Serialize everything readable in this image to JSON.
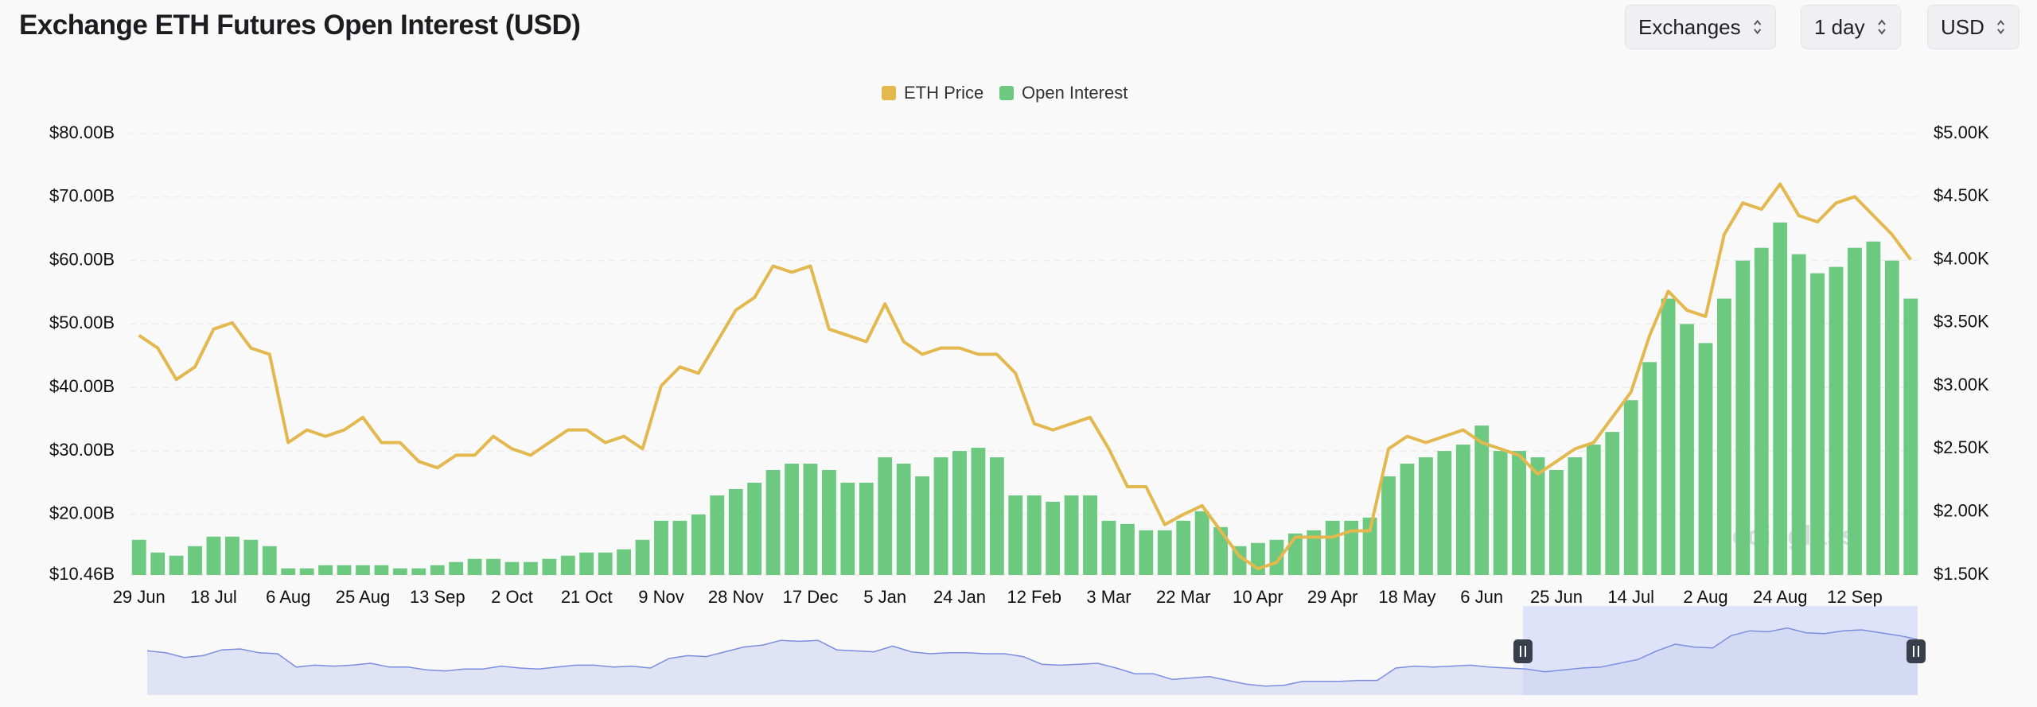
{
  "header": {
    "title": "Exchange ETH Futures Open Interest (USD)",
    "controls": [
      "Exchanges",
      "1 day",
      "USD"
    ]
  },
  "chart_data": {
    "type": "combo",
    "watermark": "coinglass",
    "categories": [
      "29 Jun",
      null,
      null,
      null,
      "18 Jul",
      null,
      null,
      null,
      "6 Aug",
      null,
      null,
      null,
      "25 Aug",
      null,
      null,
      null,
      "13 Sep",
      null,
      null,
      null,
      "2 Oct",
      null,
      null,
      null,
      "21 Oct",
      null,
      null,
      null,
      "9 Nov",
      null,
      null,
      null,
      "28 Nov",
      null,
      null,
      null,
      "17 Dec",
      null,
      null,
      null,
      "5 Jan",
      null,
      null,
      null,
      "24 Jan",
      null,
      null,
      null,
      "12 Feb",
      null,
      null,
      null,
      "3 Mar",
      null,
      null,
      null,
      "22 Mar",
      null,
      null,
      null,
      "10 Apr",
      null,
      null,
      null,
      "29 Apr",
      null,
      null,
      null,
      "18 May",
      null,
      null,
      null,
      "6 Jun",
      null,
      null,
      null,
      "25 Jun",
      null,
      null,
      null,
      "14 Jul",
      null,
      null,
      null,
      "2 Aug",
      null,
      null,
      null,
      "24 Aug",
      null,
      null,
      null,
      "12 Sep",
      null,
      null,
      null
    ],
    "series": [
      {
        "name": "ETH Price",
        "color": "#e2b84f",
        "type": "line",
        "axis": "y2",
        "values": [
          3.4,
          3.3,
          3.05,
          3.15,
          3.45,
          3.5,
          3.3,
          3.25,
          2.55,
          2.65,
          2.6,
          2.65,
          2.75,
          2.55,
          2.55,
          2.4,
          2.35,
          2.45,
          2.45,
          2.6,
          2.5,
          2.45,
          2.55,
          2.65,
          2.65,
          2.55,
          2.6,
          2.5,
          3.0,
          3.15,
          3.1,
          3.35,
          3.6,
          3.7,
          3.95,
          3.9,
          3.95,
          3.45,
          3.4,
          3.35,
          3.65,
          3.35,
          3.25,
          3.3,
          3.3,
          3.25,
          3.25,
          3.1,
          2.7,
          2.65,
          2.7,
          2.75,
          2.5,
          2.2,
          2.2,
          1.9,
          1.98,
          2.05,
          1.85,
          1.65,
          1.55,
          1.6,
          1.8,
          1.8,
          1.8,
          1.85,
          1.85,
          2.5,
          2.6,
          2.55,
          2.6,
          2.65,
          2.55,
          2.5,
          2.45,
          2.3,
          2.4,
          2.5,
          2.55,
          2.75,
          2.95,
          3.4,
          3.75,
          3.6,
          3.55,
          4.2,
          4.45,
          4.4,
          4.6,
          4.35,
          4.3,
          4.45,
          4.5,
          4.35,
          4.2,
          4.0
        ]
      },
      {
        "name": "Open Interest",
        "color": "#6cc97f",
        "type": "bar",
        "values": [
          16,
          14,
          13.5,
          15,
          16.5,
          16.5,
          16,
          15,
          11.5,
          11.5,
          12,
          12,
          12,
          12,
          11.5,
          11.5,
          12,
          12.5,
          13,
          13,
          12.5,
          12.5,
          13,
          13.5,
          14,
          14,
          14.5,
          16,
          19,
          19,
          20,
          23,
          24,
          25,
          27,
          28,
          28,
          27,
          25,
          25,
          29,
          28,
          26,
          29,
          30,
          30.5,
          29,
          23,
          23,
          22,
          23,
          23,
          19,
          18.5,
          17.5,
          17.5,
          19,
          20.5,
          18,
          15,
          15.5,
          16,
          17,
          17.5,
          19,
          19,
          19.5,
          26,
          28,
          29,
          30,
          31,
          34,
          30,
          30,
          29,
          27,
          29,
          31,
          33,
          38,
          44,
          54,
          50,
          47,
          54,
          60,
          62,
          66,
          61,
          58,
          59,
          62,
          63,
          60,
          54
        ]
      }
    ],
    "ylim": [
      10.46,
      80
    ],
    "yticks": [
      {
        "value": 10.46,
        "label": "$10.46B"
      },
      {
        "value": 20,
        "label": "$20.00B"
      },
      {
        "value": 30,
        "label": "$30.00B"
      },
      {
        "value": 40,
        "label": "$40.00B"
      },
      {
        "value": 50,
        "label": "$50.00B"
      },
      {
        "value": 60,
        "label": "$60.00B"
      },
      {
        "value": 70,
        "label": "$70.00B"
      },
      {
        "value": 80,
        "label": "$80.00B"
      }
    ],
    "y2lim": [
      1.5,
      5
    ],
    "y2ticks": [
      {
        "value": 1.5,
        "label": "$1.50K"
      },
      {
        "value": 2,
        "label": "$2.00K"
      },
      {
        "value": 2.5,
        "label": "$2.50K"
      },
      {
        "value": 3,
        "label": "$3.00K"
      },
      {
        "value": 3.5,
        "label": "$3.50K"
      },
      {
        "value": 4,
        "label": "$4.00K"
      },
      {
        "value": 4.5,
        "label": "$4.50K"
      },
      {
        "value": 5,
        "label": "$5.00K"
      }
    ],
    "grid": true,
    "legend": "top"
  }
}
